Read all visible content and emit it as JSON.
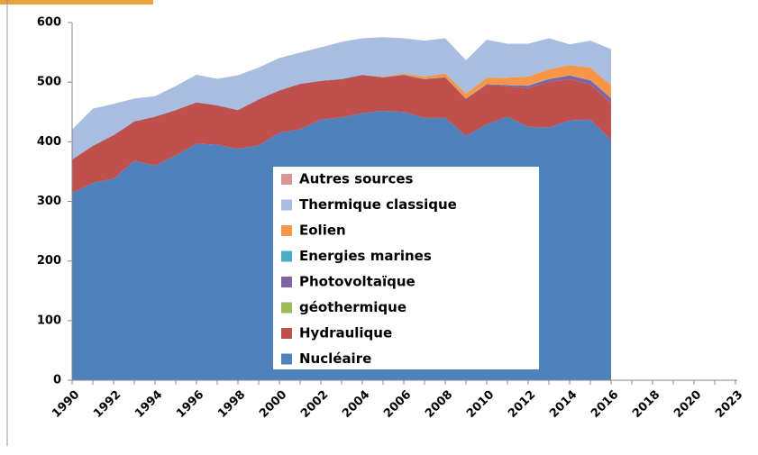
{
  "chart_data": {
    "type": "stacked_area",
    "categories": [
      "1990",
      null,
      "1992",
      null,
      "1994",
      null,
      "1996",
      null,
      "1998",
      null,
      "2000",
      null,
      "2002",
      null,
      "2004",
      null,
      "2006",
      null,
      "2008",
      null,
      "2010",
      null,
      "2012",
      null,
      "2014",
      null,
      "2016",
      null,
      "2018",
      null,
      "2020",
      null,
      "2023"
    ],
    "ylim": [
      0,
      600
    ],
    "yticks": [
      0,
      100,
      200,
      300,
      400,
      500,
      600
    ],
    "legend": "inside",
    "series": [
      {
        "name": "Nucléaire",
        "color": "#4f81bd",
        "values": [
          314,
          331,
          338,
          368,
          360,
          377,
          397,
          395,
          388,
          394,
          415,
          421,
          437,
          441,
          448,
          452,
          450,
          440,
          440,
          410,
          429,
          442,
          425,
          424,
          436,
          437,
          403,
          null,
          null,
          null,
          null,
          null,
          null
        ]
      },
      {
        "name": "Hydraulique",
        "color": "#c0504d",
        "values": [
          56,
          62,
          73,
          66,
          82,
          76,
          69,
          66,
          65,
          77,
          71,
          76,
          65,
          64,
          64,
          56,
          62,
          65,
          68,
          62,
          67,
          51,
          65,
          76,
          69,
          59,
          62,
          null,
          null,
          null,
          null,
          null,
          null
        ]
      },
      {
        "name": "géothermique",
        "color": "#9bbb59",
        "values": [
          0,
          0,
          0,
          0,
          0,
          0,
          0,
          0,
          0,
          0,
          0,
          0,
          0,
          0,
          0,
          0,
          0,
          0,
          0,
          0,
          0,
          0,
          0,
          0,
          0,
          0,
          0,
          null,
          null,
          null,
          null,
          null,
          null
        ]
      },
      {
        "name": "Photovoltaïque",
        "color": "#8064a2",
        "values": [
          0,
          0,
          0,
          0,
          0,
          0,
          0,
          0,
          0,
          0,
          0,
          0,
          0,
          0,
          0,
          0,
          0,
          0,
          0,
          0.2,
          0.6,
          2,
          4,
          5,
          6,
          7,
          8,
          null,
          null,
          null,
          null,
          null,
          null
        ]
      },
      {
        "name": "Energies marines",
        "color": "#4bacc6",
        "values": [
          0.5,
          0.5,
          0.5,
          0.5,
          0.5,
          0.5,
          0.5,
          0.5,
          0.5,
          0.5,
          0.5,
          0.5,
          0.5,
          0.5,
          0.5,
          0.5,
          0.5,
          0.5,
          0.5,
          0.5,
          0.5,
          0.5,
          0.5,
          0.5,
          0.5,
          0.5,
          0.5,
          null,
          null,
          null,
          null,
          null,
          null
        ]
      },
      {
        "name": "Eolien",
        "color": "#f79646",
        "values": [
          0,
          0,
          0,
          0,
          0,
          0,
          0,
          0,
          0,
          0,
          0,
          0,
          0,
          0,
          0,
          1,
          2,
          4,
          6,
          8,
          10,
          12,
          15,
          16,
          17,
          21,
          21,
          null,
          null,
          null,
          null,
          null,
          null
        ]
      },
      {
        "name": "Thermique classique",
        "color": "#a9bde0",
        "values": [
          50,
          62,
          52,
          38,
          34,
          40,
          46,
          44,
          58,
          53,
          54,
          52,
          56,
          62,
          61,
          66,
          59,
          60,
          59,
          56,
          64,
          57,
          55,
          52,
          35,
          45,
          61,
          null,
          null,
          null,
          null,
          null,
          null
        ]
      },
      {
        "name": "Autres sources",
        "color": "#d99694",
        "values": [
          0,
          0,
          0,
          0,
          0,
          0,
          0,
          0,
          0,
          0,
          0,
          0,
          0,
          0,
          0,
          0,
          0,
          0,
          0,
          0,
          0,
          0,
          0,
          0,
          0,
          0,
          0,
          null,
          null,
          null,
          null,
          null,
          null
        ]
      }
    ]
  }
}
